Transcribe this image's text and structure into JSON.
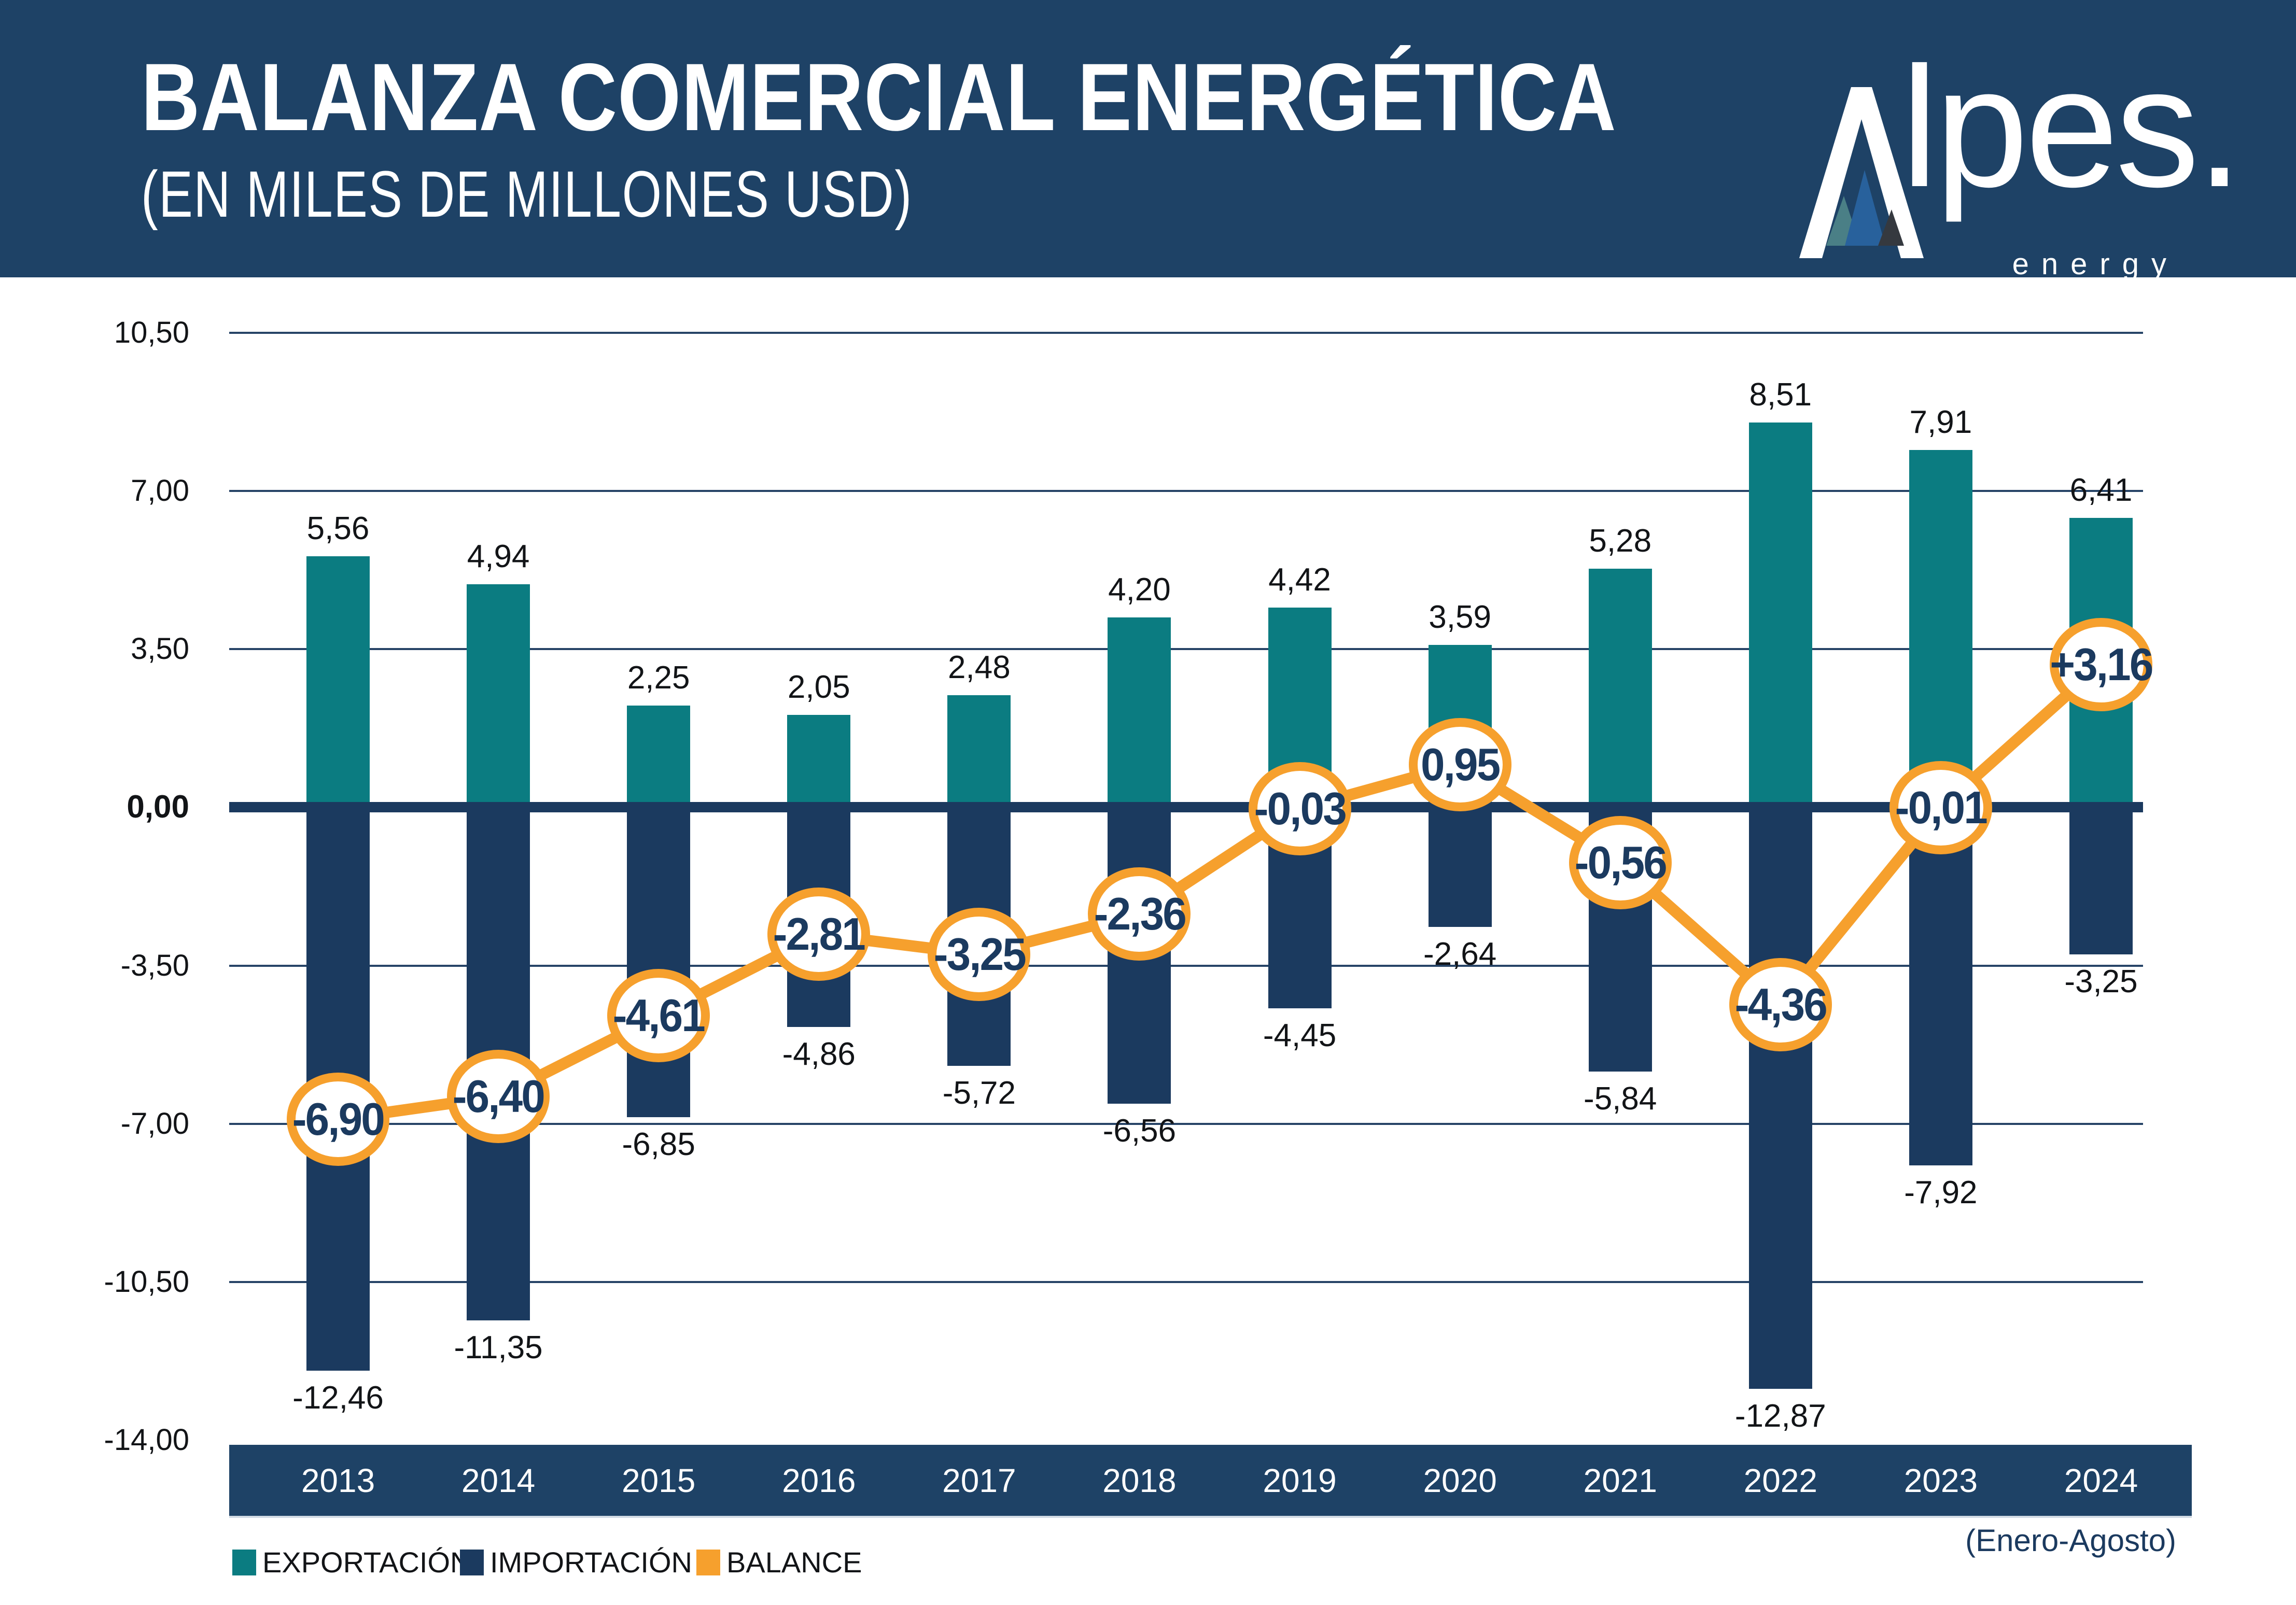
{
  "header": {
    "title": "BALANZA COMERCIAL ENERGÉTICA",
    "subtitle": "(EN MILES DE MILLONES USD)",
    "logo": {
      "brand_rest": "lpes.",
      "sub": "energy"
    }
  },
  "chart_data": {
    "type": "bar",
    "subtype": "grouped-bar-with-line",
    "title": "BALANZA COMERCIAL ENERGÉTICA",
    "subtitle": "(EN MILES DE MILLONES USD)",
    "categories": [
      "2013",
      "2014",
      "2015",
      "2016",
      "2017",
      "2018",
      "2019",
      "2020",
      "2021",
      "2022",
      "2023",
      "2024"
    ],
    "series": [
      {
        "name": "EXPORTACIÓN",
        "type": "bar",
        "color": "#0B7C81",
        "values": [
          5.56,
          4.94,
          2.25,
          2.05,
          2.48,
          4.2,
          4.42,
          3.59,
          5.28,
          8.51,
          7.91,
          6.41
        ],
        "labels": [
          "5,56",
          "4,94",
          "2,25",
          "2,05",
          "2,48",
          "4,20",
          "4,42",
          "3,59",
          "5,28",
          "8,51",
          "7,91",
          "6,41"
        ]
      },
      {
        "name": "IMPORTACIÓN",
        "type": "bar",
        "color": "#1B3A5F",
        "values": [
          -12.46,
          -11.35,
          -6.85,
          -4.86,
          -5.72,
          -6.56,
          -4.45,
          -2.64,
          -5.84,
          -12.87,
          -7.92,
          -3.25
        ],
        "labels": [
          "-12,46",
          "-11,35",
          "-6,85",
          "-4,86",
          "-5,72",
          "-6,56",
          "-4,45",
          "-2,64",
          "-5,84",
          "-12,87",
          "-7,92",
          "-3,25"
        ]
      },
      {
        "name": "BALANCE",
        "type": "line",
        "color": "#F6A02D",
        "values": [
          -6.9,
          -6.4,
          -4.61,
          -2.81,
          -3.25,
          -2.36,
          -0.03,
          0.95,
          -0.56,
          -4.36,
          -0.01,
          3.16
        ],
        "labels": [
          "-6,90",
          "-6,40",
          "-4,61",
          "-2,81",
          "-3,25",
          "-2,36",
          "-0,03",
          "0,95",
          "-0,56",
          "-4,36",
          "-0,01",
          "+3,16"
        ]
      }
    ],
    "y_axis": {
      "min": -14.0,
      "max": 10.5,
      "ticks": [
        {
          "value": 10.5,
          "label": "10,50",
          "bold": false
        },
        {
          "value": 7.0,
          "label": "7,00",
          "bold": false
        },
        {
          "value": 3.5,
          "label": "3,50",
          "bold": false
        },
        {
          "value": 0.0,
          "label": "0,00",
          "bold": true
        },
        {
          "value": -3.5,
          "label": "-3,50",
          "bold": false
        },
        {
          "value": -7.0,
          "label": "-7,00",
          "bold": false
        },
        {
          "value": -10.5,
          "label": "-10,50",
          "bold": false
        },
        {
          "value": -14.0,
          "label": "-14,00",
          "bold": false
        }
      ]
    },
    "grid": true,
    "legend_position": "bottom-left",
    "footnote": "(Enero-Agosto)"
  },
  "legend": {
    "items": [
      {
        "label": "EXPORTACIÓN",
        "color": "#0B7C81"
      },
      {
        "label": "IMPORTACIÓN",
        "color": "#1B3A5F"
      },
      {
        "label": "BALANCE",
        "color": "#F6A02D"
      }
    ]
  },
  "colors": {
    "header_bg": "#1E4266",
    "band_bg": "#1E4266",
    "navy": "#1B3A5F",
    "teal": "#0B7C81",
    "orange": "#F6A02D",
    "logo_triangle_teal": "#4A7F86",
    "logo_triangle_blue": "#28619C",
    "logo_triangle_dark": "#35393F"
  }
}
